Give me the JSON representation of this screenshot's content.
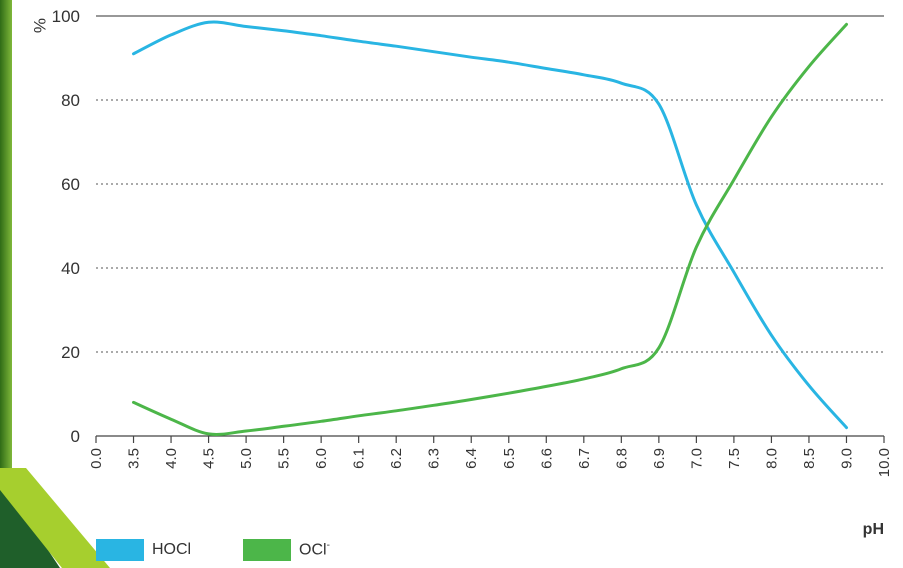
{
  "chart_data": {
    "type": "line",
    "xlabel": "pH",
    "ylabel": "%",
    "x_ticks": [
      "0.0",
      "3.5",
      "4.0",
      "4.5",
      "5.0",
      "5.5",
      "6.0",
      "6.1",
      "6.2",
      "6.3",
      "6.4",
      "6.5",
      "6.6",
      "6.7",
      "6.8",
      "6.9",
      "7.0",
      "7.5",
      "8.0",
      "8.5",
      "9.0",
      "10.0"
    ],
    "y_ticks": [
      0,
      20,
      40,
      60,
      80,
      100
    ],
    "ylim": [
      0,
      100
    ],
    "grid": "horizontal-dotted",
    "legend_position": "bottom-left",
    "series": [
      {
        "name": "HOCl",
        "color": "#29b5e3",
        "points": [
          [
            "3.5",
            91
          ],
          [
            "4.0",
            95.5
          ],
          [
            "4.5",
            98.5
          ],
          [
            "5.0",
            97.5
          ],
          [
            "5.5",
            96.5
          ],
          [
            "6.0",
            95.3
          ],
          [
            "6.1",
            94
          ],
          [
            "6.2",
            92.8
          ],
          [
            "6.3",
            91.5
          ],
          [
            "6.4",
            90.2
          ],
          [
            "6.5",
            89
          ],
          [
            "6.6",
            87.5
          ],
          [
            "6.7",
            86
          ],
          [
            "6.8",
            84
          ],
          [
            "6.9",
            79
          ],
          [
            "7.0",
            55
          ],
          [
            "7.5",
            39
          ],
          [
            "8.0",
            24
          ],
          [
            "8.5",
            12
          ],
          [
            "9.0",
            2
          ]
        ]
      },
      {
        "name": "OCl",
        "name_sup": "-",
        "color": "#4cb649",
        "points": [
          [
            "3.5",
            8
          ],
          [
            "4.0",
            4
          ],
          [
            "4.5",
            0.5
          ],
          [
            "5.0",
            1.2
          ],
          [
            "5.5",
            2.3
          ],
          [
            "6.0",
            3.5
          ],
          [
            "6.1",
            4.8
          ],
          [
            "6.2",
            6
          ],
          [
            "6.3",
            7.3
          ],
          [
            "6.4",
            8.7
          ],
          [
            "6.5",
            10.2
          ],
          [
            "6.6",
            11.8
          ],
          [
            "6.7",
            13.6
          ],
          [
            "6.8",
            16
          ],
          [
            "6.9",
            21
          ],
          [
            "7.0",
            45
          ],
          [
            "7.5",
            61
          ],
          [
            "8.0",
            76
          ],
          [
            "8.5",
            88
          ],
          [
            "9.0",
            98
          ]
        ]
      }
    ]
  }
}
